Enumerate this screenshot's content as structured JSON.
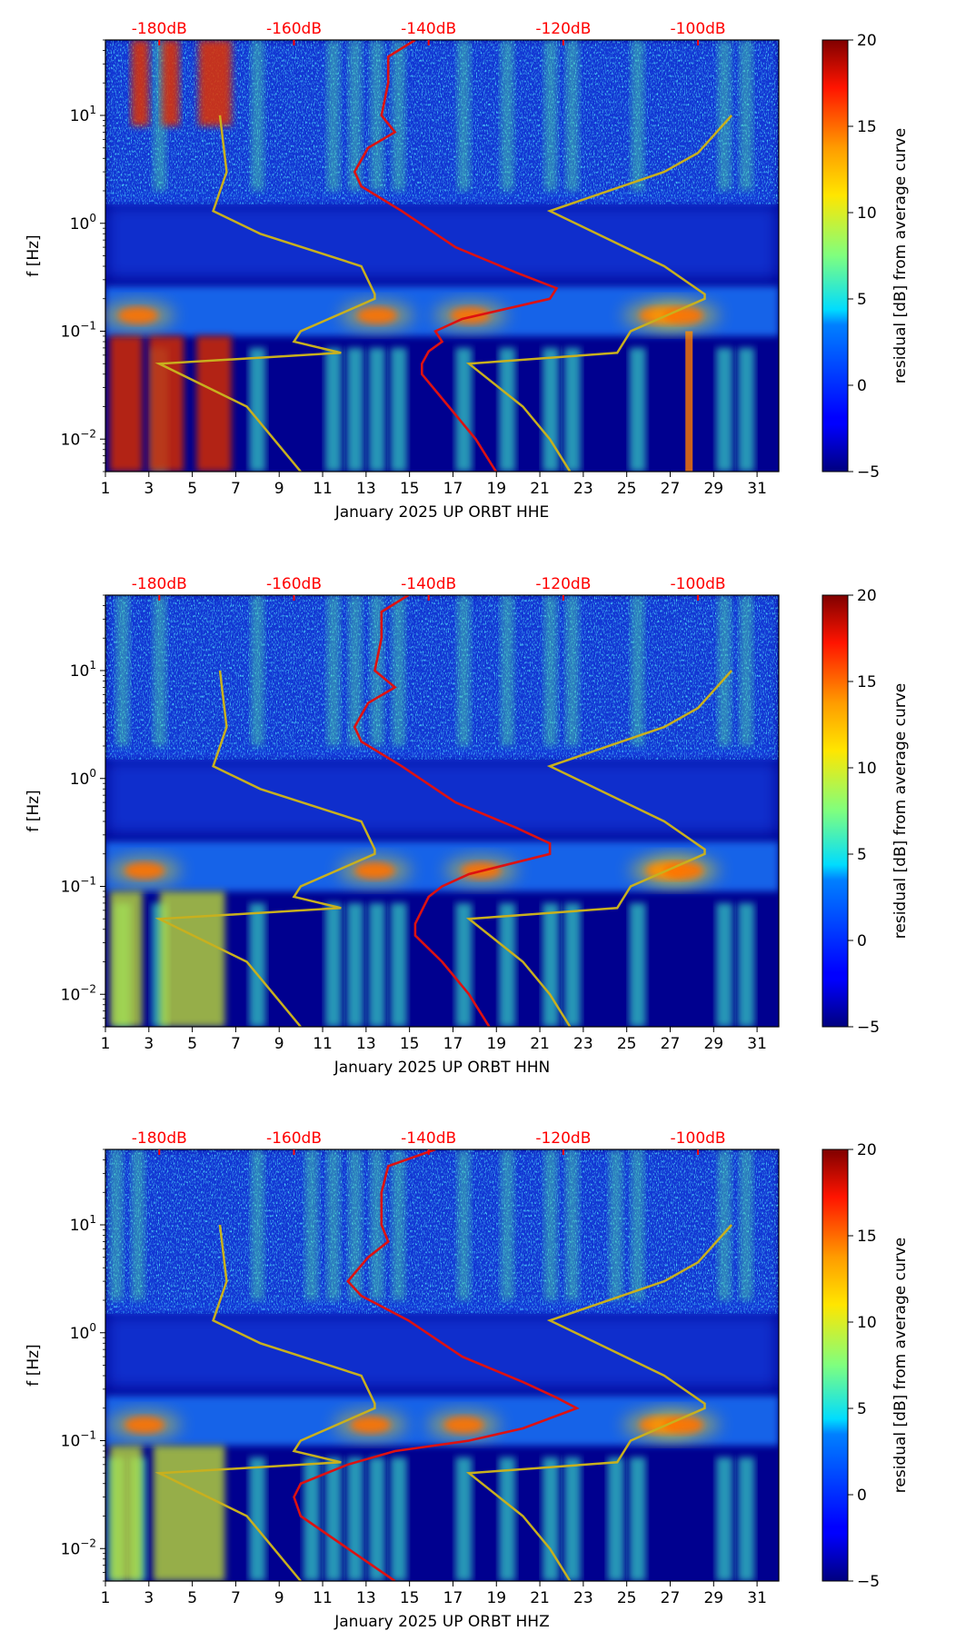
{
  "chart_data": [
    {
      "type": "heatmap",
      "xlabel": "January 2025 UP ORBT  HHE",
      "ylabel": "f [Hz]",
      "x_ticks": [
        1,
        3,
        5,
        7,
        9,
        11,
        13,
        15,
        17,
        19,
        21,
        23,
        25,
        27,
        29,
        31
      ],
      "x_range": [
        1,
        32
      ],
      "y_range_hz": [
        0.005,
        50
      ],
      "y_ticks": [
        {
          "value": 10,
          "label_base": "10",
          "label_exp": "1"
        },
        {
          "value": 1,
          "label_base": "10",
          "label_exp": "0"
        },
        {
          "value": 0.1,
          "label_base": "10",
          "label_exp": "−1"
        },
        {
          "value": 0.01,
          "label_base": "10",
          "label_exp": "−2"
        }
      ],
      "top_db_ticks": [
        {
          "db": -180,
          "label": "-180dB"
        },
        {
          "db": -160,
          "label": "-160dB"
        },
        {
          "db": -140,
          "label": "-140dB"
        },
        {
          "db": -120,
          "label": "-120dB"
        },
        {
          "db": -100,
          "label": "-100dB"
        }
      ],
      "db_range": [
        -188,
        -88
      ],
      "colorbar": {
        "label": "residual [dB] from average curve",
        "min": -5,
        "max": 20,
        "ticks": [
          {
            "value": 20,
            "label": "20"
          },
          {
            "value": 15,
            "label": "15"
          },
          {
            "value": 10,
            "label": "10"
          },
          {
            "value": 5,
            "label": "5"
          },
          {
            "value": 0,
            "label": "0"
          },
          {
            "value": -5,
            "label": "−5"
          }
        ]
      },
      "nlnm_curve_db": [
        [
          0.005,
          -159
        ],
        [
          0.01,
          -163
        ],
        [
          0.02,
          -167
        ],
        [
          0.05,
          -180
        ],
        [
          0.063,
          -153
        ],
        [
          0.08,
          -160
        ],
        [
          0.1,
          -159
        ],
        [
          0.2,
          -148
        ],
        [
          0.22,
          -148
        ],
        [
          0.4,
          -150
        ],
        [
          0.8,
          -165
        ],
        [
          1.3,
          -172
        ],
        [
          3,
          -170
        ],
        [
          10,
          -171
        ]
      ],
      "nhnm_curve_db": [
        [
          0.005,
          -119
        ],
        [
          0.01,
          -122
        ],
        [
          0.02,
          -126
        ],
        [
          0.05,
          -134
        ],
        [
          0.063,
          -112
        ],
        [
          0.1,
          -110
        ],
        [
          0.2,
          -99
        ],
        [
          0.22,
          -99
        ],
        [
          0.4,
          -105
        ],
        [
          1.3,
          -122
        ],
        [
          3,
          -105
        ],
        [
          4.5,
          -100
        ],
        [
          10,
          -95
        ]
      ],
      "average_curve_db": [
        [
          0.005,
          -130
        ],
        [
          0.01,
          -133
        ],
        [
          0.02,
          -137
        ],
        [
          0.04,
          -141
        ],
        [
          0.05,
          -141
        ],
        [
          0.065,
          -140
        ],
        [
          0.08,
          -138
        ],
        [
          0.1,
          -139
        ],
        [
          0.13,
          -135
        ],
        [
          0.2,
          -122
        ],
        [
          0.25,
          -121
        ],
        [
          0.35,
          -127
        ],
        [
          0.6,
          -136
        ],
        [
          1.3,
          -144
        ],
        [
          2.2,
          -150
        ],
        [
          3,
          -151
        ],
        [
          5,
          -149
        ],
        [
          7,
          -145
        ],
        [
          10,
          -147
        ],
        [
          20,
          -146
        ],
        [
          35,
          -146
        ],
        [
          50,
          -142
        ]
      ],
      "series_colors": {
        "average_curve": "#dd1111",
        "model_curves": "#c8b01e",
        "top_ticks": "#ff0000"
      },
      "background_model": {
        "low_freq_events": [
          [
            1.2,
            2.7
          ],
          [
            3.0,
            4.6
          ],
          [
            5.2,
            6.8
          ]
        ],
        "microseism_hot_days": [
          2.5,
          13.5,
          17.8,
          26.5,
          27.6
        ],
        "event_columns": [
          3.5,
          8,
          11.5,
          12.5,
          13.5,
          14.5,
          17.5,
          19.5,
          21.5,
          22.5,
          25.5,
          29.5,
          30.5
        ]
      }
    },
    {
      "type": "heatmap",
      "xlabel": "January 2025 UP ORBT  HHN",
      "ylabel": "f [Hz]",
      "x_ticks": [
        1,
        3,
        5,
        7,
        9,
        11,
        13,
        15,
        17,
        19,
        21,
        23,
        25,
        27,
        29,
        31
      ],
      "x_range": [
        1,
        32
      ],
      "y_range_hz": [
        0.005,
        50
      ],
      "y_ticks": [
        {
          "value": 10,
          "label_base": "10",
          "label_exp": "1"
        },
        {
          "value": 1,
          "label_base": "10",
          "label_exp": "0"
        },
        {
          "value": 0.1,
          "label_base": "10",
          "label_exp": "−1"
        },
        {
          "value": 0.01,
          "label_base": "10",
          "label_exp": "−2"
        }
      ],
      "top_db_ticks": [
        {
          "db": -180,
          "label": "-180dB"
        },
        {
          "db": -160,
          "label": "-160dB"
        },
        {
          "db": -140,
          "label": "-140dB"
        },
        {
          "db": -120,
          "label": "-120dB"
        },
        {
          "db": -100,
          "label": "-100dB"
        }
      ],
      "db_range": [
        -188,
        -88
      ],
      "colorbar": {
        "label": "residual [dB] from average curve",
        "min": -5,
        "max": 20,
        "ticks": [
          {
            "value": 20,
            "label": "20"
          },
          {
            "value": 15,
            "label": "15"
          },
          {
            "value": 10,
            "label": "10"
          },
          {
            "value": 5,
            "label": "5"
          },
          {
            "value": 0,
            "label": "0"
          },
          {
            "value": -5,
            "label": "−5"
          }
        ]
      },
      "nlnm_curve_db": [
        [
          0.005,
          -159
        ],
        [
          0.01,
          -163
        ],
        [
          0.02,
          -167
        ],
        [
          0.05,
          -180
        ],
        [
          0.063,
          -153
        ],
        [
          0.08,
          -160
        ],
        [
          0.1,
          -159
        ],
        [
          0.2,
          -148
        ],
        [
          0.22,
          -148
        ],
        [
          0.4,
          -150
        ],
        [
          0.8,
          -165
        ],
        [
          1.3,
          -172
        ],
        [
          3,
          -170
        ],
        [
          10,
          -171
        ]
      ],
      "nhnm_curve_db": [
        [
          0.005,
          -119
        ],
        [
          0.01,
          -122
        ],
        [
          0.02,
          -126
        ],
        [
          0.05,
          -134
        ],
        [
          0.063,
          -112
        ],
        [
          0.1,
          -110
        ],
        [
          0.2,
          -99
        ],
        [
          0.22,
          -99
        ],
        [
          0.4,
          -105
        ],
        [
          1.3,
          -122
        ],
        [
          3,
          -105
        ],
        [
          4.5,
          -100
        ],
        [
          10,
          -95
        ]
      ],
      "average_curve_db": [
        [
          0.005,
          -131
        ],
        [
          0.01,
          -134
        ],
        [
          0.02,
          -138
        ],
        [
          0.035,
          -142
        ],
        [
          0.045,
          -142
        ],
        [
          0.06,
          -141
        ],
        [
          0.08,
          -140
        ],
        [
          0.1,
          -138
        ],
        [
          0.13,
          -134
        ],
        [
          0.2,
          -122
        ],
        [
          0.25,
          -122
        ],
        [
          0.35,
          -127
        ],
        [
          0.6,
          -136
        ],
        [
          1.3,
          -144
        ],
        [
          2.2,
          -150
        ],
        [
          3,
          -151
        ],
        [
          5,
          -149
        ],
        [
          7,
          -145
        ],
        [
          10,
          -148
        ],
        [
          20,
          -147
        ],
        [
          35,
          -147
        ],
        [
          50,
          -143
        ]
      ],
      "series_colors": {
        "average_curve": "#dd1111",
        "model_curves": "#c8b01e",
        "top_ticks": "#ff0000"
      },
      "background_model": {
        "low_freq_events": [
          [
            1.2,
            2.7
          ],
          [
            3.5,
            6.5
          ]
        ],
        "microseism_hot_days": [
          2.8,
          13.4,
          18.3,
          26.8,
          27.6
        ],
        "event_columns": [
          1.8,
          3.5,
          8,
          11.5,
          12.5,
          13.5,
          14.5,
          17.5,
          19.5,
          21.5,
          22.5,
          25.5,
          29.5,
          30.5
        ]
      }
    },
    {
      "type": "heatmap",
      "xlabel": "January 2025 UP ORBT  HHZ",
      "ylabel": "f [Hz]",
      "x_ticks": [
        1,
        3,
        5,
        7,
        9,
        11,
        13,
        15,
        17,
        19,
        21,
        23,
        25,
        27,
        29,
        31
      ],
      "x_range": [
        1,
        32
      ],
      "y_range_hz": [
        0.005,
        50
      ],
      "y_ticks": [
        {
          "value": 10,
          "label_base": "10",
          "label_exp": "1"
        },
        {
          "value": 1,
          "label_base": "10",
          "label_exp": "0"
        },
        {
          "value": 0.1,
          "label_base": "10",
          "label_exp": "−1"
        },
        {
          "value": 0.01,
          "label_base": "10",
          "label_exp": "−2"
        }
      ],
      "top_db_ticks": [
        {
          "db": -180,
          "label": "-180dB"
        },
        {
          "db": -160,
          "label": "-160dB"
        },
        {
          "db": -140,
          "label": "-140dB"
        },
        {
          "db": -120,
          "label": "-120dB"
        },
        {
          "db": -100,
          "label": "-100dB"
        }
      ],
      "db_range": [
        -188,
        -88
      ],
      "colorbar": {
        "label": "residual [dB] from average curve",
        "min": -5,
        "max": 20,
        "ticks": [
          {
            "value": 20,
            "label": "20"
          },
          {
            "value": 15,
            "label": "15"
          },
          {
            "value": 10,
            "label": "10"
          },
          {
            "value": 5,
            "label": "5"
          },
          {
            "value": 0,
            "label": "0"
          },
          {
            "value": -5,
            "label": "−5"
          }
        ]
      },
      "nlnm_curve_db": [
        [
          0.005,
          -159
        ],
        [
          0.01,
          -163
        ],
        [
          0.02,
          -167
        ],
        [
          0.05,
          -180
        ],
        [
          0.063,
          -153
        ],
        [
          0.08,
          -160
        ],
        [
          0.1,
          -159
        ],
        [
          0.2,
          -148
        ],
        [
          0.22,
          -148
        ],
        [
          0.4,
          -150
        ],
        [
          0.8,
          -165
        ],
        [
          1.3,
          -172
        ],
        [
          3,
          -170
        ],
        [
          10,
          -171
        ]
      ],
      "nhnm_curve_db": [
        [
          0.005,
          -119
        ],
        [
          0.01,
          -122
        ],
        [
          0.02,
          -126
        ],
        [
          0.05,
          -134
        ],
        [
          0.063,
          -112
        ],
        [
          0.1,
          -110
        ],
        [
          0.2,
          -99
        ],
        [
          0.22,
          -99
        ],
        [
          0.4,
          -105
        ],
        [
          1.3,
          -122
        ],
        [
          3,
          -105
        ],
        [
          4.5,
          -100
        ],
        [
          10,
          -95
        ]
      ],
      "average_curve_db": [
        [
          0.005,
          -145
        ],
        [
          0.01,
          -152
        ],
        [
          0.02,
          -159
        ],
        [
          0.03,
          -160
        ],
        [
          0.04,
          -159
        ],
        [
          0.06,
          -152
        ],
        [
          0.08,
          -145
        ],
        [
          0.1,
          -134
        ],
        [
          0.13,
          -126
        ],
        [
          0.2,
          -118
        ],
        [
          0.25,
          -121
        ],
        [
          0.35,
          -126
        ],
        [
          0.6,
          -135
        ],
        [
          1.3,
          -143
        ],
        [
          2.2,
          -150
        ],
        [
          3,
          -152
        ],
        [
          5,
          -149
        ],
        [
          7,
          -146
        ],
        [
          10,
          -147
        ],
        [
          20,
          -147
        ],
        [
          35,
          -146
        ],
        [
          50,
          -139
        ]
      ],
      "series_colors": {
        "average_curve": "#dd1111",
        "model_curves": "#c8b01e",
        "top_ticks": "#ff0000"
      },
      "background_model": {
        "low_freq_events": [
          [
            1.2,
            2.7
          ],
          [
            3.2,
            6.5
          ]
        ],
        "microseism_hot_days": [
          2.8,
          13.2,
          17.5,
          26.5,
          27.6
        ],
        "event_columns": [
          1.5,
          2.5,
          8,
          10.5,
          11.5,
          12.5,
          13.5,
          14.5,
          17.5,
          19.5,
          21.5,
          22.5,
          24.5,
          25.5,
          29.5,
          30.5
        ]
      }
    }
  ]
}
